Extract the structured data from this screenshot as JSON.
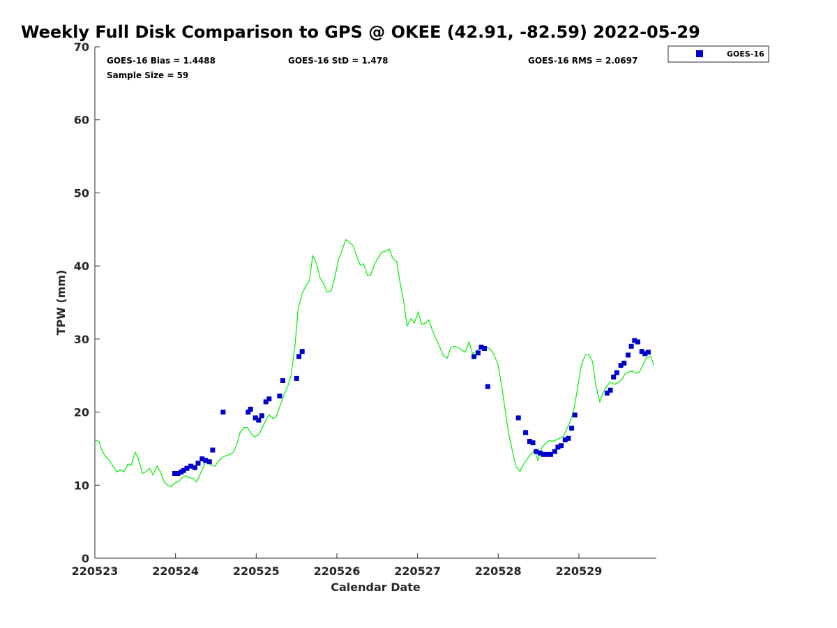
{
  "chart_data": {
    "type": "scatter",
    "title": "Weekly Full Disk Comparison to GPS @ OKEE (42.91, -82.59) 2022-05-29",
    "xlabel": "Calendar Date",
    "ylabel": "TPW (mm)",
    "xlim": [
      0,
      6.96
    ],
    "ylim": [
      0,
      70
    ],
    "x_ticks": [
      0,
      1,
      2,
      3,
      4,
      5,
      6
    ],
    "x_tick_labels": [
      "220523",
      "220524",
      "220525",
      "220526",
      "220527",
      "220528",
      "220529"
    ],
    "y_ticks": [
      0,
      10,
      20,
      30,
      40,
      50,
      60,
      70
    ],
    "y_tick_labels": [
      "0",
      "10",
      "20",
      "30",
      "40",
      "50",
      "60",
      "70"
    ],
    "grid": false,
    "legend_position": "outside-top-right",
    "stats": {
      "bias": "GOES-16 Bias = 1.4488",
      "std": "GOES-16 StD = 1.478",
      "rms": "GOES-16 RMS = 2.0697",
      "sample": "Sample Size = 59"
    },
    "series": [
      {
        "name": "GOES-16",
        "kind": "scatter",
        "color": "#0000cc",
        "marker": "square",
        "x": [
          0.99,
          1.03,
          1.07,
          1.1,
          1.14,
          1.19,
          1.24,
          1.28,
          1.33,
          1.37,
          1.42,
          1.46,
          1.59,
          1.9,
          1.93,
          1.99,
          2.03,
          2.07,
          2.12,
          2.16,
          2.29,
          2.33,
          2.5,
          2.53,
          2.57,
          4.7,
          4.75,
          4.79,
          4.83,
          4.87,
          5.25,
          5.34,
          5.39,
          5.43,
          5.47,
          5.52,
          5.56,
          5.61,
          5.65,
          5.7,
          5.74,
          5.78,
          5.83,
          5.87,
          5.91,
          5.95,
          6.35,
          6.39,
          6.43,
          6.47,
          6.52,
          6.56,
          6.61,
          6.65,
          6.69,
          6.73,
          6.78,
          6.82,
          6.86
        ],
        "y": [
          11.6,
          11.6,
          11.8,
          12.0,
          12.3,
          12.6,
          12.4,
          13.0,
          13.6,
          13.4,
          13.2,
          14.8,
          20.0,
          20.0,
          20.4,
          19.2,
          18.9,
          19.5,
          21.4,
          21.8,
          22.2,
          24.3,
          24.6,
          27.6,
          28.3,
          27.6,
          28.1,
          28.9,
          28.7,
          23.5,
          19.2,
          17.2,
          16.0,
          15.8,
          14.6,
          14.4,
          14.2,
          14.2,
          14.2,
          14.6,
          15.2,
          15.4,
          16.2,
          16.4,
          17.8,
          19.6,
          22.6,
          23.0,
          24.8,
          25.4,
          26.4,
          26.7,
          27.8,
          29.0,
          29.8,
          29.6,
          28.3,
          28.0,
          28.2
        ]
      },
      {
        "name": "GPS",
        "kind": "line",
        "color": "#00ee00",
        "x": [
          0,
          0.05,
          0.09,
          0.14,
          0.18,
          0.23,
          0.27,
          0.32,
          0.36,
          0.41,
          0.45,
          0.5,
          0.54,
          0.59,
          0.63,
          0.68,
          0.72,
          0.77,
          0.81,
          0.86,
          0.9,
          0.95,
          0.99,
          1.04,
          1.08,
          1.13,
          1.17,
          1.22,
          1.26,
          1.31,
          1.35,
          1.4,
          1.44,
          1.49,
          1.53,
          1.58,
          1.62,
          1.67,
          1.71,
          1.76,
          1.8,
          1.85,
          1.89,
          1.94,
          1.98,
          2.03,
          2.07,
          2.12,
          2.16,
          2.21,
          2.25,
          2.3,
          2.34,
          2.39,
          2.43,
          2.48,
          2.52,
          2.57,
          2.61,
          2.66,
          2.7,
          2.75,
          2.79,
          2.84,
          2.88,
          2.93,
          2.97,
          3.02,
          3.06,
          3.11,
          3.15,
          3.2,
          3.24,
          3.29,
          3.33,
          3.38,
          3.42,
          3.47,
          3.51,
          3.56,
          3.6,
          3.65,
          3.69,
          3.74,
          3.78,
          3.83,
          3.87,
          3.92,
          3.96,
          4.01,
          4.05,
          4.1,
          4.14,
          4.19,
          4.23,
          4.28,
          4.32,
          4.37,
          4.41,
          4.46,
          4.5,
          4.55,
          4.59,
          4.64,
          4.68,
          4.73,
          4.77,
          4.82,
          4.86,
          4.91,
          4.95,
          5.0,
          5.04,
          5.09,
          5.13,
          5.18,
          5.22,
          5.27,
          5.31,
          5.36,
          5.4,
          5.45,
          5.49,
          5.54,
          5.58,
          5.63,
          5.67,
          5.72,
          5.76,
          5.81,
          5.85,
          5.9,
          5.94,
          5.99,
          6.03,
          6.08,
          6.12,
          6.17,
          6.21,
          6.26,
          6.3,
          6.35,
          6.39,
          6.44,
          6.48,
          6.53,
          6.57,
          6.62,
          6.66,
          6.71,
          6.75,
          6.8,
          6.84,
          6.89,
          6.93
        ],
        "y": [
          16.2,
          16.0,
          14.7,
          13.8,
          13.4,
          12.5,
          11.8,
          12.1,
          11.8,
          12.9,
          12.7,
          14.5,
          13.6,
          11.6,
          11.8,
          12.3,
          11.4,
          12.6,
          11.9,
          10.4,
          10.0,
          9.8,
          10.3,
          10.5,
          11.0,
          11.3,
          11.0,
          10.9,
          10.4,
          11.6,
          12.7,
          13.6,
          12.7,
          12.6,
          13.3,
          13.8,
          14.0,
          14.2,
          14.4,
          15.6,
          17.2,
          17.9,
          17.9,
          17.0,
          16.6,
          16.9,
          17.7,
          18.9,
          19.6,
          19.1,
          19.4,
          21.0,
          22.2,
          23.5,
          24.9,
          29.0,
          34.2,
          36.2,
          37.2,
          38.0,
          41.4,
          40.3,
          38.4,
          37.5,
          36.4,
          36.6,
          38.2,
          40.9,
          42.0,
          43.6,
          43.3,
          42.8,
          41.5,
          40.1,
          40.3,
          38.7,
          38.8,
          40.3,
          41.1,
          41.9,
          42.0,
          42.3,
          41.1,
          40.6,
          37.9,
          35.0,
          31.8,
          32.8,
          32.2,
          33.7,
          32.0,
          32.2,
          32.6,
          31.0,
          30.0,
          28.8,
          27.7,
          27.4,
          28.8,
          29.0,
          28.8,
          28.5,
          28.2,
          29.6,
          28.0,
          28.3,
          28.8,
          29.0,
          28.9,
          28.5,
          27.8,
          26.4,
          23.8,
          20.0,
          17.0,
          14.5,
          12.5,
          11.9,
          12.8,
          13.6,
          14.2,
          14.8,
          13.4,
          15.2,
          15.6,
          16.1,
          16.0,
          16.2,
          16.4,
          16.7,
          17.7,
          18.9,
          20.5,
          23.7,
          26.4,
          27.8,
          27.9,
          26.9,
          23.6,
          21.4,
          22.7,
          23.6,
          24.1,
          23.8,
          24.0,
          24.4,
          25.2,
          25.5,
          25.6,
          25.3,
          25.5,
          26.6,
          27.5,
          27.6,
          26.4
        ]
      }
    ]
  }
}
